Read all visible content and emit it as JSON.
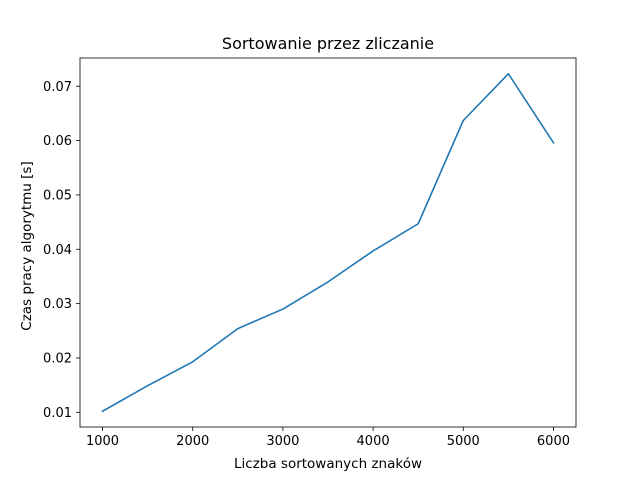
{
  "chart_data": {
    "type": "line",
    "title": "Sortowanie przez zliczanie",
    "xlabel": "Liczba sortowanych znaków",
    "ylabel": "Czas pracy algorytmu [s]",
    "xlim": [
      750,
      6250
    ],
    "ylim": [
      0.0073,
      0.0752
    ],
    "xticks": [
      1000,
      2000,
      3000,
      4000,
      5000,
      6000
    ],
    "yticks": [
      0.01,
      0.02,
      0.03,
      0.04,
      0.05,
      0.06,
      0.07
    ],
    "xtick_labels": [
      "1000",
      "2000",
      "3000",
      "4000",
      "5000",
      "6000"
    ],
    "ytick_labels": [
      "0.01",
      "0.02",
      "0.03",
      "0.04",
      "0.05",
      "0.06",
      "0.07"
    ],
    "grid": false,
    "series": [
      {
        "color": "#1f77b4",
        "x": [
          1000,
          1500,
          2000,
          2500,
          3000,
          3500,
          4000,
          4500,
          5000,
          5500,
          6000
        ],
        "values": [
          0.0102,
          0.0149,
          0.0193,
          0.0254,
          0.029,
          0.034,
          0.0397,
          0.0447,
          0.0637,
          0.0723,
          0.0596
        ]
      }
    ]
  }
}
